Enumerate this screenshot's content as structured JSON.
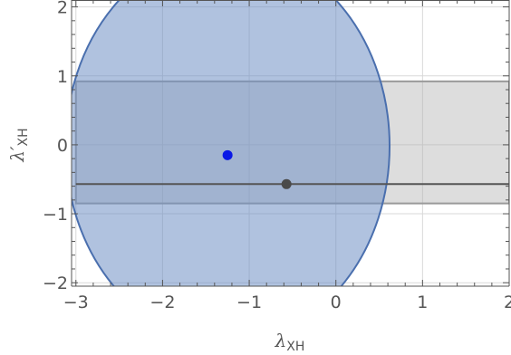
{
  "chart_data": {
    "type": "scatter",
    "xlabel": {
      "main": "λ",
      "sub": "XH"
    },
    "ylabel": {
      "main": "λ′",
      "sub": "XH"
    },
    "xlim": [
      -3.05,
      2.0
    ],
    "ylim": [
      -2.05,
      2.1
    ],
    "x_ticks": [
      -3,
      -2,
      -1,
      0,
      1,
      2
    ],
    "y_ticks": [
      -2,
      -1,
      0,
      1,
      2
    ],
    "x_tick_labels": [
      "−3",
      "−2",
      "−1",
      "0",
      "1",
      "2"
    ],
    "y_tick_labels": [
      "−2",
      "−1",
      "0",
      "1",
      "2"
    ],
    "grid": true,
    "regions": [
      {
        "kind": "rectangle",
        "x": [
          -3.0,
          2.0
        ],
        "y": [
          -0.85,
          0.92
        ],
        "fill": "#b4b4b4",
        "stroke": "#9a9a9a",
        "opacity": 0.45
      },
      {
        "kind": "ellipse",
        "center": [
          -1.25,
          -0.02
        ],
        "semi_axes": [
          1.87,
          2.85
        ],
        "fill": "#6f90c4",
        "stroke": "#4a6fae",
        "opacity": 0.55
      }
    ],
    "lines": [
      {
        "kind": "horizontal",
        "y": -0.57,
        "x": [
          -3.0,
          2.0
        ],
        "color": "#555555"
      }
    ],
    "points": [
      {
        "x": -1.25,
        "y": -0.15,
        "color": "#0a18e6"
      },
      {
        "x": -0.57,
        "y": -0.57,
        "color": "#4a4a4a"
      }
    ]
  }
}
